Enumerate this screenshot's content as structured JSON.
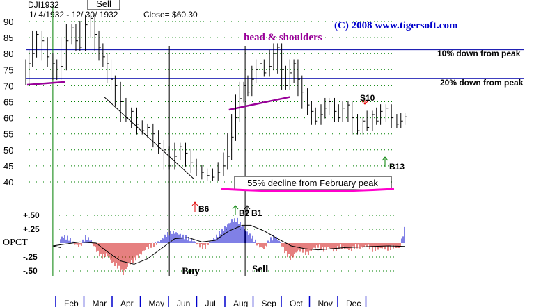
{
  "header": {
    "ticker": "DJI1932",
    "date_range": "1/ 4/1932 -  12/ 30/ 1932",
    "close_text": "Close= $60.30",
    "copyright": "(C) 2008  www.tigersoft.com"
  },
  "annotations": {
    "sell_box": "Sell",
    "head_shoulders": "head & shoulders",
    "ten_down": "10% down from peak",
    "twenty_down": "20% down from peak",
    "decline_box": "55% decline from February peak",
    "buy_label": "Buy",
    "sell_label": "Sell",
    "signals": [
      {
        "label": "S10",
        "month": 10.15,
        "price": 64,
        "dir": "down",
        "color": "#e00000"
      },
      {
        "label": "B13",
        "month": 11.35,
        "price": 47,
        "dir": "up",
        "color": "#008000"
      },
      {
        "label": "B6",
        "month": 5.5,
        "price": 0,
        "dir": "up",
        "color": "#e00000"
      },
      {
        "label": "B2",
        "month": 7.4,
        "price": 0,
        "dir": "up",
        "color": "#008000"
      },
      {
        "label": "B1",
        "month": 7.95,
        "price": 0,
        "dir": "up",
        "color": "#000000"
      }
    ]
  },
  "chart_data": {
    "type": "line",
    "title": "",
    "price_axis": {
      "ticks": [
        40,
        45,
        50,
        55,
        60,
        65,
        70,
        75,
        80,
        85,
        90
      ],
      "range": [
        37,
        92
      ]
    },
    "osc_axis": {
      "label": "OPCT",
      "tick_labels": [
        "+.50",
        "+.25",
        "-.25",
        "-.50"
      ],
      "tick_values": [
        0.5,
        0.25,
        -0.25,
        -0.5
      ],
      "range": [
        -0.62,
        0.62
      ]
    },
    "months": [
      "Feb",
      "Mar",
      "Apr",
      "May",
      "Jun",
      "Jul",
      "Aug",
      "Sep",
      "Oct",
      "Nov",
      "Dec"
    ],
    "horizontal_lines": [
      {
        "name": "10% down from peak",
        "value": 81.2,
        "color": "#0000aa"
      },
      {
        "name": "20% down from peak",
        "value": 72.2,
        "color": "#0000aa"
      }
    ],
    "vertical_lines": [
      {
        "month": 1.0,
        "color": "#008000"
      },
      {
        "month": 5.3,
        "color": "#000000"
      },
      {
        "month": 8.1,
        "color": "#000000"
      }
    ],
    "trendlines": [
      {
        "color": "#990099",
        "from": [
          0.05,
          70.3
        ],
        "to": [
          1.45,
          71.2
        ]
      },
      {
        "color": "#000000",
        "from": [
          2.9,
          66.5
        ],
        "to": [
          6.2,
          41.0
        ]
      },
      {
        "color": "#990099",
        "from": [
          7.5,
          62.5
        ],
        "to": [
          9.75,
          66.5
        ]
      }
    ],
    "price_close": [
      [
        0.0,
        71.5
      ],
      [
        0.12,
        77
      ],
      [
        0.25,
        80
      ],
      [
        0.4,
        86
      ],
      [
        0.6,
        84
      ],
      [
        0.8,
        79
      ],
      [
        1.0,
        77
      ],
      [
        1.15,
        73
      ],
      [
        1.3,
        76
      ],
      [
        1.5,
        84
      ],
      [
        1.7,
        88
      ],
      [
        1.85,
        84
      ],
      [
        2.0,
        82
      ],
      [
        2.2,
        89
      ],
      [
        2.4,
        91
      ],
      [
        2.55,
        86
      ],
      [
        2.7,
        82
      ],
      [
        2.85,
        79
      ],
      [
        3.0,
        77
      ],
      [
        3.15,
        72
      ],
      [
        3.3,
        70
      ],
      [
        3.5,
        65
      ],
      [
        3.7,
        60
      ],
      [
        3.9,
        62
      ],
      [
        4.1,
        58
      ],
      [
        4.3,
        56
      ],
      [
        4.5,
        57
      ],
      [
        4.7,
        55
      ],
      [
        4.9,
        52
      ],
      [
        5.1,
        50
      ],
      [
        5.3,
        45
      ],
      [
        5.5,
        48
      ],
      [
        5.7,
        51
      ],
      [
        5.9,
        49
      ],
      [
        6.1,
        46
      ],
      [
        6.3,
        44
      ],
      [
        6.5,
        43
      ],
      [
        6.7,
        42
      ],
      [
        6.9,
        41.5
      ],
      [
        7.1,
        43
      ],
      [
        7.3,
        45
      ],
      [
        7.45,
        48
      ],
      [
        7.6,
        54
      ],
      [
        7.75,
        60
      ],
      [
        7.9,
        66
      ],
      [
        8.05,
        70
      ],
      [
        8.2,
        68
      ],
      [
        8.35,
        72
      ],
      [
        8.5,
        75
      ],
      [
        8.65,
        77
      ],
      [
        8.8,
        74
      ],
      [
        9.0,
        76
      ],
      [
        9.15,
        80
      ],
      [
        9.3,
        82
      ],
      [
        9.45,
        75
      ],
      [
        9.6,
        70
      ],
      [
        9.75,
        74
      ],
      [
        9.9,
        77
      ],
      [
        10.05,
        72
      ],
      [
        10.2,
        68
      ],
      [
        10.4,
        64
      ],
      [
        10.55,
        62
      ],
      [
        10.7,
        59
      ],
      [
        10.9,
        61
      ],
      [
        11.05,
        63
      ],
      [
        11.2,
        65
      ],
      [
        11.4,
        62
      ],
      [
        11.55,
        60
      ],
      [
        11.7,
        63
      ],
      [
        11.9,
        64
      ],
      [
        12.05,
        60
      ],
      [
        12.25,
        56
      ],
      [
        12.45,
        59
      ],
      [
        12.6,
        57
      ],
      [
        12.8,
        61
      ],
      [
        12.95,
        59
      ],
      [
        13.1,
        62
      ],
      [
        13.3,
        63
      ],
      [
        13.5,
        60
      ],
      [
        13.7,
        58
      ],
      [
        13.85,
        59
      ],
      [
        14.0,
        60.3
      ]
    ],
    "oscillator": [
      [
        0.0,
        -0.05
      ],
      [
        0.2,
        -0.12
      ],
      [
        0.4,
        -0.1
      ],
      [
        0.6,
        -0.15
      ],
      [
        0.8,
        -0.12
      ],
      [
        1.0,
        -0.08
      ],
      [
        1.2,
        0.05
      ],
      [
        1.4,
        0.12
      ],
      [
        1.6,
        0.08
      ],
      [
        1.8,
        -0.02
      ],
      [
        2.0,
        -0.06
      ],
      [
        2.2,
        0.1
      ],
      [
        2.4,
        0.06
      ],
      [
        2.6,
        -0.12
      ],
      [
        2.8,
        -0.25
      ],
      [
        3.0,
        -0.2
      ],
      [
        3.2,
        -0.35
      ],
      [
        3.4,
        -0.42
      ],
      [
        3.6,
        -0.55
      ],
      [
        3.8,
        -0.38
      ],
      [
        4.0,
        -0.3
      ],
      [
        4.2,
        -0.22
      ],
      [
        4.4,
        -0.12
      ],
      [
        4.6,
        -0.05
      ],
      [
        4.8,
        -0.02
      ],
      [
        5.0,
        0.06
      ],
      [
        5.2,
        0.15
      ],
      [
        5.4,
        0.2
      ],
      [
        5.6,
        0.18
      ],
      [
        5.8,
        0.12
      ],
      [
        6.0,
        0.08
      ],
      [
        6.2,
        0.04
      ],
      [
        6.4,
        -0.04
      ],
      [
        6.6,
        -0.08
      ],
      [
        6.8,
        0.02
      ],
      [
        7.0,
        0.1
      ],
      [
        7.2,
        0.2
      ],
      [
        7.4,
        0.3
      ],
      [
        7.6,
        0.4
      ],
      [
        7.8,
        0.42
      ],
      [
        8.0,
        0.3
      ],
      [
        8.2,
        0.18
      ],
      [
        8.4,
        0.08
      ],
      [
        8.6,
        -0.05
      ],
      [
        8.8,
        -0.1
      ],
      [
        9.0,
        0.05
      ],
      [
        9.2,
        0.12
      ],
      [
        9.4,
        0.02
      ],
      [
        9.6,
        -0.18
      ],
      [
        9.8,
        -0.28
      ],
      [
        10.0,
        -0.15
      ],
      [
        10.2,
        -0.12
      ],
      [
        10.4,
        -0.2
      ],
      [
        10.6,
        -0.1
      ],
      [
        10.8,
        -0.05
      ],
      [
        11.0,
        -0.12
      ],
      [
        11.2,
        -0.08
      ],
      [
        11.4,
        -0.14
      ],
      [
        11.6,
        -0.06
      ],
      [
        11.8,
        -0.1
      ],
      [
        12.0,
        -0.12
      ],
      [
        12.2,
        -0.05
      ],
      [
        12.4,
        -0.08
      ],
      [
        12.6,
        -0.04
      ],
      [
        12.8,
        -0.12
      ],
      [
        13.0,
        -0.1
      ],
      [
        13.2,
        -0.08
      ],
      [
        13.4,
        -0.1
      ],
      [
        13.6,
        -0.06
      ],
      [
        13.8,
        -0.1
      ],
      [
        14.0,
        0.28
      ]
    ],
    "osc_ma": [
      [
        0.0,
        -0.08
      ],
      [
        1.0,
        -0.05
      ],
      [
        2.0,
        0.02
      ],
      [
        2.6,
        0.0
      ],
      [
        3.0,
        -0.15
      ],
      [
        3.5,
        -0.32
      ],
      [
        4.0,
        -0.38
      ],
      [
        4.5,
        -0.28
      ],
      [
        5.0,
        -0.1
      ],
      [
        5.5,
        0.08
      ],
      [
        6.0,
        0.1
      ],
      [
        6.5,
        0.02
      ],
      [
        7.0,
        0.05
      ],
      [
        7.5,
        0.22
      ],
      [
        8.0,
        0.32
      ],
      [
        8.3,
        0.32
      ],
      [
        8.8,
        0.22
      ],
      [
        9.3,
        0.08
      ],
      [
        9.8,
        -0.05
      ],
      [
        10.3,
        -0.1
      ],
      [
        10.8,
        -0.12
      ],
      [
        11.3,
        -0.1
      ],
      [
        11.8,
        -0.08
      ],
      [
        12.3,
        -0.07
      ],
      [
        12.8,
        -0.06
      ],
      [
        13.4,
        -0.05
      ],
      [
        14.0,
        -0.06
      ]
    ]
  }
}
